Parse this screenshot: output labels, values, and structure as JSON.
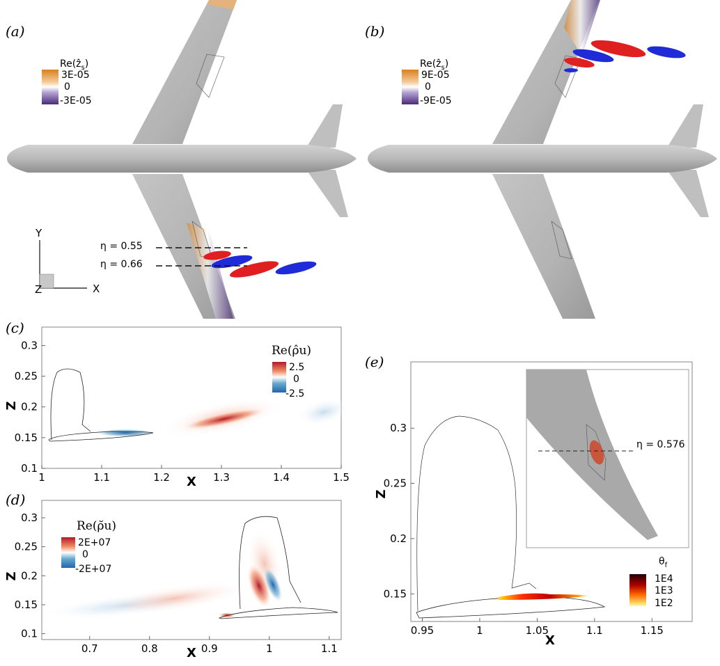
{
  "panels": {
    "a": {
      "label": "(a)",
      "legend": {
        "title": "Re(ẑ",
        "title_sub": "s",
        "title_close": ")",
        "max": "3E-05",
        "mid": "0",
        "min": "-3E-05"
      },
      "eta_lines": [
        "η = 0.55",
        "η = 0.66"
      ],
      "axes_triad": {
        "y": "Y",
        "z": "Z",
        "x": "X"
      }
    },
    "b": {
      "label": "(b)",
      "legend": {
        "title": "Re(ẑ",
        "title_sub": "s",
        "title_close": ")",
        "max": "9E-05",
        "mid": "0",
        "min": "-9E-05"
      }
    },
    "c": {
      "label": "(c)",
      "legend": {
        "title": "Re(ρ̂u)",
        "max": "2.5",
        "mid": "0",
        "min": "-2.5"
      }
    },
    "d": {
      "label": "(d)",
      "legend": {
        "title": "Re(ρ̆u)",
        "max": "2E+07",
        "mid": "0",
        "min": "-2E+07"
      }
    },
    "e": {
      "label": "(e)",
      "legend": {
        "title": "θ",
        "title_sub": "f",
        "max": "1E4",
        "mid": "1E3",
        "min": "1E2"
      },
      "inset_eta": "η = 0.576"
    }
  },
  "colors": {
    "orange": "#d9801e",
    "purple": "#4a2a7a",
    "red": "#b2182b",
    "blue": "#2166ac",
    "iso_red": "#e02020",
    "iso_blue": "#1f2bd6",
    "aircraft_grey": "#c8c8c8"
  },
  "chart_data": [
    {
      "type": "heatmap",
      "panel": "c",
      "xlabel": "X",
      "ylabel": "Z",
      "xlim": [
        1,
        1.5
      ],
      "ylim": [
        0.1,
        0.33
      ],
      "xticks": [
        1,
        1.1,
        1.2,
        1.3,
        1.4,
        1.5
      ],
      "yticks": [
        0.1,
        0.15,
        0.2,
        0.25,
        0.3
      ],
      "colorbar": {
        "min": -2.5,
        "max": 2.5
      }
    },
    {
      "type": "heatmap",
      "panel": "d",
      "xlabel": "X",
      "ylabel": "Z",
      "xlim": [
        0.62,
        1.12
      ],
      "ylim": [
        0.09,
        0.33
      ],
      "xticks": [
        0.7,
        0.8,
        0.9,
        1,
        1.1
      ],
      "yticks": [
        0.1,
        0.15,
        0.2,
        0.25,
        0.3
      ],
      "colorbar": {
        "min": -20000000,
        "max": 20000000
      }
    },
    {
      "type": "heatmap",
      "panel": "e",
      "xlabel": "X",
      "ylabel": "Z",
      "xlim": [
        0.94,
        1.185
      ],
      "ylim": [
        0.125,
        0.36
      ],
      "xticks": [
        0.95,
        1,
        1.05,
        1.1,
        1.15
      ],
      "yticks": [
        0.15,
        0.2,
        0.25,
        0.3
      ],
      "colorbar": {
        "scale": "log",
        "min": 100,
        "max": 10000
      }
    }
  ]
}
